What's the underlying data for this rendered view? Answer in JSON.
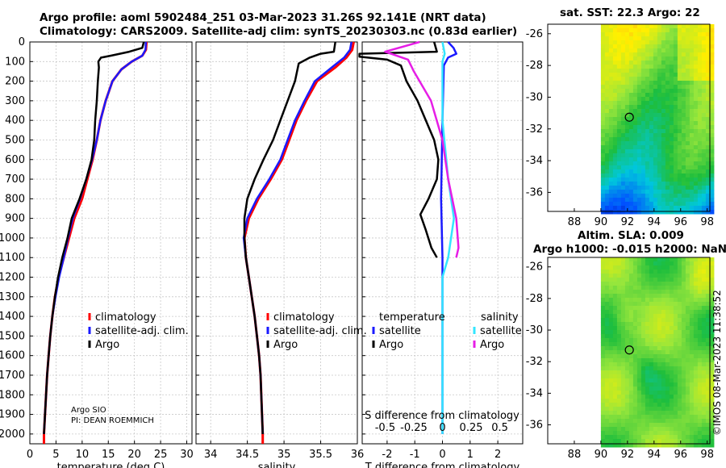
{
  "header": {
    "line1": "Argo profile: aoml 5902484_251 03-Mar-2023 31.26S 92.141E (NRT data)",
    "line2": "Climatology: CARS2009. Satellite-adj clim: synTS_20230303.nc (0.83d earlier)"
  },
  "map_sst": {
    "title": "sat. SST: 22.3 Argo: 22"
  },
  "map_sla": {
    "title1": "Altim. SLA: 0.009",
    "title2": "Argo h1000: -0.015 h2000: NaN"
  },
  "credit": "©IMOS 08-Mar-2023 11:38:52",
  "pi": {
    "line1": "Argo SIO",
    "line2": "PI: DEAN ROEMMICH"
  },
  "colors": {
    "clim": "#ff0000",
    "sat": "#1a1aff",
    "argo": "#000000",
    "sat_s": "#33e6ff",
    "argo_s": "#e61ee6"
  },
  "chart_data": [
    {
      "type": "line",
      "name": "temperature",
      "xlabel": "temperature (deg C)",
      "xlim": [
        0,
        31
      ],
      "xticks": [
        "0",
        "5",
        "10",
        "15",
        "20",
        "25",
        "30"
      ],
      "ylim": [
        0,
        2050
      ],
      "yticks": [
        "0",
        "100",
        "200",
        "300",
        "400",
        "500",
        "600",
        "700",
        "800",
        "900",
        "1000",
        "1100",
        "1200",
        "1300",
        "1400",
        "1500",
        "1600",
        "1700",
        "1800",
        "1900",
        "2000"
      ],
      "legend": [
        "climatology",
        "satellite-adj. clim.",
        "Argo"
      ],
      "series": [
        {
          "name": "climatology",
          "points": [
            [
              22.3,
              0
            ],
            [
              22.2,
              40
            ],
            [
              21.5,
              70
            ],
            [
              19.5,
              100
            ],
            [
              17.5,
              140
            ],
            [
              15.8,
              200
            ],
            [
              14.5,
              300
            ],
            [
              13.5,
              400
            ],
            [
              12.8,
              500
            ],
            [
              12,
              600
            ],
            [
              11,
              700
            ],
            [
              10,
              800
            ],
            [
              8.5,
              900
            ],
            [
              7.5,
              1000
            ],
            [
              6.5,
              1100
            ],
            [
              5.5,
              1200
            ],
            [
              4.8,
              1300
            ],
            [
              4.3,
              1400
            ],
            [
              3.9,
              1500
            ],
            [
              3.6,
              1600
            ],
            [
              3.3,
              1700
            ],
            [
              3.1,
              1800
            ],
            [
              2.9,
              1900
            ],
            [
              2.7,
              2000
            ],
            [
              2.7,
              2050
            ]
          ]
        },
        {
          "name": "satellite-adj. clim.",
          "points": [
            [
              22.2,
              0
            ],
            [
              22.1,
              40
            ],
            [
              21.5,
              70
            ],
            [
              19.5,
              100
            ],
            [
              17.5,
              140
            ],
            [
              15.8,
              200
            ],
            [
              14.5,
              300
            ],
            [
              13.5,
              400
            ],
            [
              12.8,
              500
            ],
            [
              11.9,
              600
            ],
            [
              10.8,
              700
            ],
            [
              9.6,
              800
            ],
            [
              8.2,
              900
            ],
            [
              7.3,
              1000
            ],
            [
              6.5,
              1100
            ],
            [
              5.6,
              1200
            ],
            [
              4.9,
              1300
            ],
            [
              4.3,
              1400
            ],
            [
              3.9,
              1500
            ],
            [
              3.6,
              1600
            ],
            [
              3.3,
              1700
            ],
            [
              3.1,
              1800
            ],
            [
              2.9,
              1900
            ],
            [
              2.7,
              2000
            ]
          ]
        },
        {
          "name": "Argo",
          "points": [
            [
              21.8,
              0
            ],
            [
              21.5,
              30
            ],
            [
              19,
              50
            ],
            [
              15.5,
              70
            ],
            [
              13.6,
              80
            ],
            [
              13.1,
              100
            ],
            [
              13.2,
              130
            ],
            [
              13,
              200
            ],
            [
              12.8,
              300
            ],
            [
              12.5,
              400
            ],
            [
              12.3,
              500
            ],
            [
              11.8,
              600
            ],
            [
              10.8,
              700
            ],
            [
              9.5,
              800
            ],
            [
              8,
              900
            ],
            [
              7.2,
              1000
            ],
            [
              6.2,
              1100
            ],
            [
              5.4,
              1200
            ],
            [
              4.8,
              1300
            ],
            [
              4.3,
              1400
            ],
            [
              3.9,
              1500
            ],
            [
              3.6,
              1600
            ],
            [
              3.3,
              1700
            ],
            [
              3.1,
              1800
            ],
            [
              2.9,
              1900
            ],
            [
              2.7,
              2000
            ]
          ]
        }
      ]
    },
    {
      "type": "line",
      "name": "salinity",
      "xlabel": "salinity",
      "xlim": [
        33.8,
        36.0
      ],
      "xticks": [
        "34",
        "34.5",
        "35",
        "35.5",
        "36"
      ],
      "ylim": [
        0,
        2050
      ],
      "legend": [
        "climatology",
        "satellite-adj. clim.",
        "Argo"
      ],
      "series": [
        {
          "name": "climatology",
          "points": [
            [
              35.95,
              0
            ],
            [
              35.93,
              40
            ],
            [
              35.85,
              80
            ],
            [
              35.7,
              130
            ],
            [
              35.45,
              200
            ],
            [
              35.3,
              300
            ],
            [
              35.17,
              400
            ],
            [
              35.07,
              500
            ],
            [
              34.97,
              600
            ],
            [
              34.82,
              700
            ],
            [
              34.65,
              800
            ],
            [
              34.52,
              900
            ],
            [
              34.46,
              1000
            ],
            [
              34.48,
              1100
            ],
            [
              34.52,
              1200
            ],
            [
              34.56,
              1300
            ],
            [
              34.6,
              1400
            ],
            [
              34.63,
              1500
            ],
            [
              34.66,
              1600
            ],
            [
              34.68,
              1700
            ],
            [
              34.69,
              1800
            ],
            [
              34.7,
              1900
            ],
            [
              34.71,
              2000
            ],
            [
              34.71,
              2050
            ]
          ]
        },
        {
          "name": "satellite-adj. clim.",
          "points": [
            [
              35.92,
              0
            ],
            [
              35.9,
              40
            ],
            [
              35.82,
              80
            ],
            [
              35.65,
              130
            ],
            [
              35.42,
              200
            ],
            [
              35.28,
              300
            ],
            [
              35.15,
              400
            ],
            [
              35.05,
              500
            ],
            [
              34.95,
              600
            ],
            [
              34.8,
              700
            ],
            [
              34.63,
              800
            ],
            [
              34.5,
              900
            ],
            [
              34.45,
              1000
            ],
            [
              34.48,
              1100
            ],
            [
              34.52,
              1200
            ],
            [
              34.56,
              1300
            ],
            [
              34.6,
              1400
            ],
            [
              34.63,
              1500
            ],
            [
              34.66,
              1600
            ],
            [
              34.68,
              1700
            ],
            [
              34.69,
              1800
            ],
            [
              34.7,
              1900
            ],
            [
              34.71,
              2000
            ]
          ]
        },
        {
          "name": "Argo",
          "points": [
            [
              35.7,
              0
            ],
            [
              35.68,
              50
            ],
            [
              35.5,
              60
            ],
            [
              35.35,
              80
            ],
            [
              35.2,
              110
            ],
            [
              35.15,
              200
            ],
            [
              35.05,
              300
            ],
            [
              34.95,
              400
            ],
            [
              34.85,
              500
            ],
            [
              34.72,
              600
            ],
            [
              34.6,
              700
            ],
            [
              34.5,
              800
            ],
            [
              34.46,
              900
            ],
            [
              34.46,
              1000
            ],
            [
              34.48,
              1100
            ],
            [
              34.52,
              1200
            ],
            [
              34.56,
              1300
            ],
            [
              34.6,
              1400
            ],
            [
              34.63,
              1500
            ],
            [
              34.66,
              1600
            ],
            [
              34.68,
              1700
            ],
            [
              34.69,
              1800
            ],
            [
              34.7,
              1900
            ],
            [
              34.71,
              2000
            ]
          ]
        }
      ]
    },
    {
      "type": "line",
      "name": "difference",
      "xlabel": "T difference from climatology",
      "xlim": [
        -2.9,
        2.9
      ],
      "xticks": [
        "-2",
        "-1",
        "0",
        "1",
        "2"
      ],
      "sublabel": "S difference from climatology",
      "s_ticks": [
        "-0.5",
        "-0.25",
        "0",
        "0.25",
        "0.5"
      ],
      "ylim": [
        0,
        2050
      ],
      "legend_t": "temperature",
      "legend_s": "salinity",
      "legend_entries": [
        "satellite",
        "Argo",
        "satellite",
        "Argo"
      ],
      "series": [
        {
          "name": "T satellite",
          "points": [
            [
              0.2,
              0
            ],
            [
              0.4,
              30
            ],
            [
              0.5,
              60
            ],
            [
              0.2,
              80
            ],
            [
              0.05,
              120
            ],
            [
              0,
              400
            ],
            [
              -0.05,
              800
            ],
            [
              0,
              1100
            ],
            [
              0,
              1200
            ],
            [
              0,
              2000
            ]
          ]
        },
        {
          "name": "T Argo",
          "points": [
            [
              -0.3,
              0
            ],
            [
              -0.2,
              50
            ],
            [
              -3,
              60
            ],
            [
              -3,
              75
            ],
            [
              -2,
              90
            ],
            [
              -1.5,
              120
            ],
            [
              -1.3,
              200
            ],
            [
              -0.9,
              300
            ],
            [
              -0.6,
              400
            ],
            [
              -0.3,
              500
            ],
            [
              -0.15,
              600
            ],
            [
              -0.2,
              700
            ],
            [
              -0.5,
              800
            ],
            [
              -0.8,
              880
            ],
            [
              -0.6,
              960
            ],
            [
              -0.4,
              1050
            ],
            [
              -0.2,
              1100
            ]
          ]
        },
        {
          "name": "S satellite",
          "points": [
            [
              0,
              0
            ],
            [
              0.02,
              60
            ],
            [
              0,
              100
            ],
            [
              0,
              400
            ],
            [
              0.05,
              700
            ],
            [
              0.1,
              900
            ],
            [
              0.05,
              1100
            ],
            [
              0,
              1200
            ],
            [
              0,
              2000
            ]
          ]
        },
        {
          "name": "S Argo",
          "points": [
            [
              -0.2,
              0
            ],
            [
              -0.5,
              50
            ],
            [
              -0.3,
              90
            ],
            [
              -0.25,
              150
            ],
            [
              -0.1,
              300
            ],
            [
              0,
              500
            ],
            [
              0.05,
              700
            ],
            [
              0.12,
              900
            ],
            [
              0.14,
              1050
            ],
            [
              0.12,
              1100
            ]
          ]
        }
      ]
    },
    {
      "type": "heatmap",
      "name": "sst_map",
      "xticks": [
        "88",
        "90",
        "92",
        "94",
        "96",
        "98"
      ],
      "yticks": [
        "-26",
        "-28",
        "-30",
        "-32",
        "-34",
        "-36"
      ],
      "xlim": [
        86,
        98.2
      ],
      "ylim": [
        -37.2,
        -25.4
      ],
      "argo_position": [
        92.14,
        -31.26
      ]
    },
    {
      "type": "heatmap",
      "name": "sla_map",
      "xticks": [
        "88",
        "90",
        "92",
        "94",
        "96",
        "98"
      ],
      "yticks": [
        "-26",
        "-28",
        "-30",
        "-32",
        "-34",
        "-36"
      ],
      "xlim": [
        86,
        98.2
      ],
      "ylim": [
        -37.2,
        -25.4
      ],
      "argo_position": [
        92.14,
        -31.26
      ]
    }
  ]
}
